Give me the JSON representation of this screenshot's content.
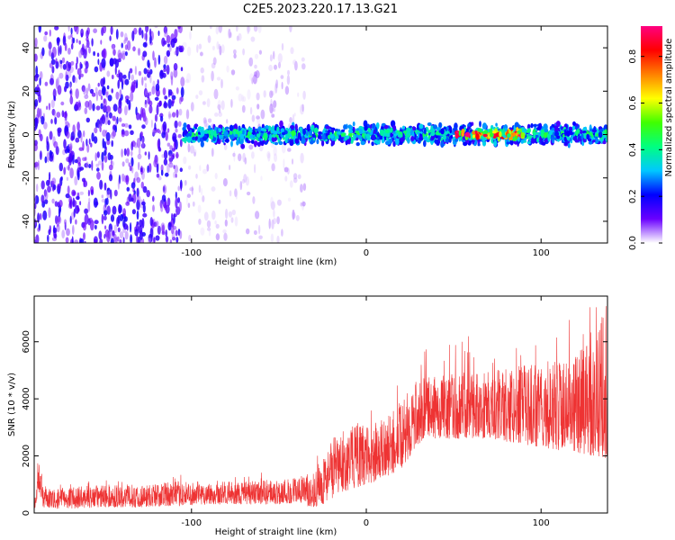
{
  "title": "C2E5.2023.220.17.13.G21",
  "chart_data": [
    {
      "type": "heatmap",
      "xlabel": "Height of straight line (km)",
      "ylabel": "Frequency (Hz)",
      "xlim": [
        -190,
        138
      ],
      "ylim": [
        -50,
        50
      ],
      "xticks": [
        -100,
        0,
        100
      ],
      "yticks": [
        -40,
        -20,
        0,
        20,
        40
      ],
      "grid": false,
      "colorbar": {
        "label": "Normalized spectral amplitude",
        "range": [
          0,
          0.93
        ],
        "ticks": [
          0.0,
          0.2,
          0.4,
          0.6,
          0.8
        ],
        "colormap": [
          "#ffffff",
          "#6a00ff",
          "#0000ff",
          "#00c8ff",
          "#00ff80",
          "#40ff00",
          "#ffff00",
          "#ff8000",
          "#ff0000",
          "#ff0080"
        ]
      },
      "regions": [
        {
          "x_range": [
            -190,
            -105
          ],
          "freq_spread_hz": [
            -50,
            50
          ],
          "amplitude": 0.12
        },
        {
          "x_range": [
            -105,
            -35
          ],
          "freq_spread_hz": [
            -50,
            50
          ],
          "amplitude": 0.04
        },
        {
          "x_range": [
            -105,
            138
          ],
          "freq_center_hz": 0,
          "freq_halfwidth_hz": 6,
          "amplitude": 0.35
        },
        {
          "x_range": [
            50,
            90
          ],
          "freq_center_hz": 0,
          "freq_halfwidth_hz": 3,
          "amplitude": 0.75
        }
      ]
    },
    {
      "type": "line",
      "xlabel": "Height of straight line (km)",
      "ylabel": "SNR (10 * v/v)",
      "xlim": [
        -190,
        138
      ],
      "ylim": [
        0,
        7600
      ],
      "xticks": [
        -100,
        0,
        100
      ],
      "yticks": [
        0,
        2000,
        4000,
        6000
      ],
      "grid": false,
      "series": [
        {
          "color": "#ee3333",
          "envelope_x": [
            -190,
            -187,
            -185,
            -180,
            -170,
            -150,
            -130,
            -110,
            -90,
            -70,
            -50,
            -40,
            -30,
            -25,
            -20,
            -15,
            -10,
            -5,
            0,
            10,
            20,
            25,
            30,
            35,
            40,
            50,
            60,
            70,
            80,
            90,
            100,
            110,
            120,
            130,
            138
          ],
          "envelope_low": [
            100,
            700,
            200,
            150,
            150,
            200,
            200,
            250,
            300,
            300,
            300,
            350,
            200,
            300,
            500,
            700,
            800,
            900,
            1000,
            1200,
            1500,
            2000,
            2400,
            2700,
            2600,
            2600,
            2600,
            2600,
            2500,
            2400,
            2300,
            2200,
            2100,
            2000,
            1900
          ],
          "envelope_high": [
            600,
            1800,
            1000,
            800,
            900,
            1000,
            1000,
            1100,
            1100,
            1100,
            1200,
            1300,
            1400,
            2000,
            2600,
            2800,
            3000,
            3200,
            3000,
            3300,
            3800,
            4400,
            4700,
            4800,
            4800,
            4900,
            5000,
            5000,
            5100,
            5200,
            5300,
            5400,
            5600,
            6100,
            7500
          ]
        }
      ]
    }
  ]
}
